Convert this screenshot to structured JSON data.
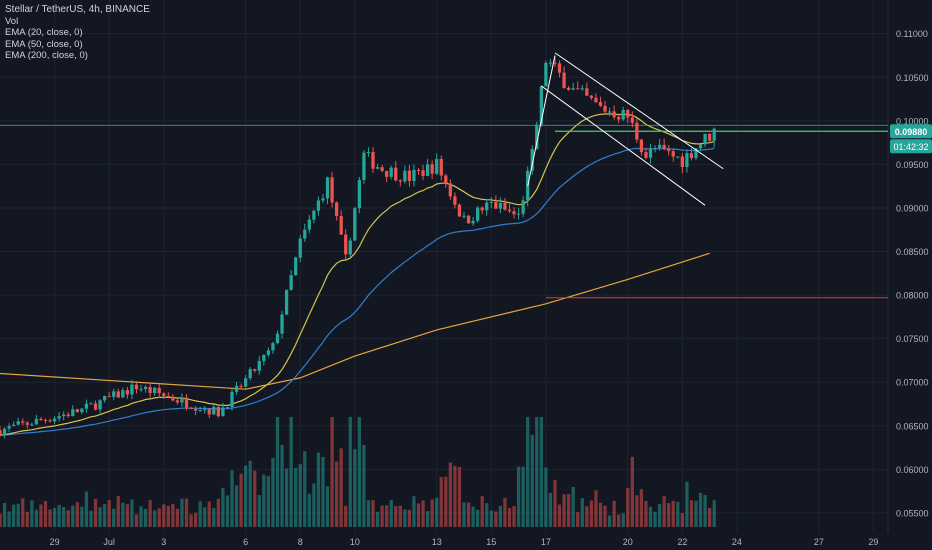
{
  "header": {
    "title": "Stellar / TetherUS, 4h, BINANCE",
    "indicators": [
      "Vol",
      "EMA (20, close, 0)",
      "EMA (50, close, 0)",
      "EMA (200, close, 0)"
    ]
  },
  "price_axis": {
    "ticks": [
      "0.11000",
      "0.10500",
      "0.10000",
      "0.09500",
      "0.09000",
      "0.08500",
      "0.08000",
      "0.07500",
      "0.07000",
      "0.06500",
      "0.06000",
      "0.05500"
    ],
    "current_price_label": "0.09880",
    "countdown_label": "01:42:32"
  },
  "time_axis": {
    "ticks": [
      "29",
      "Jul",
      "3",
      "6",
      "8",
      "10",
      "13",
      "15",
      "17",
      "20",
      "22",
      "24",
      "27",
      "29"
    ]
  },
  "colors": {
    "background": "#131722",
    "up": "#26a69a",
    "down": "#ef5350",
    "ema20": "#d4c44a",
    "ema50": "#2e7fd1",
    "ema200": "#e8a33d",
    "horizontal_line": "#4ba89a",
    "support_line": "#e53935",
    "trendlines": "#ffffff",
    "price_tag": "#26a69a"
  },
  "chart_data": {
    "type": "candlestick",
    "symbol": "Stellar / TetherUS",
    "interval": "4h",
    "exchange": "BINANCE",
    "y_range": [
      0.0535,
      0.1118
    ],
    "x_range": [
      "2020-06-27",
      "2020-07-31"
    ],
    "key_points": [
      {
        "date": "2020-06-27",
        "close": 0.0645
      },
      {
        "date": "2020-06-30",
        "close": 0.0668
      },
      {
        "date": "2020-07-02",
        "close": 0.0695
      },
      {
        "date": "2020-07-05",
        "close": 0.0665
      },
      {
        "date": "2020-07-07",
        "close": 0.074
      },
      {
        "date": "2020-07-08",
        "close": 0.086
      },
      {
        "date": "2020-07-09",
        "close": 0.093
      },
      {
        "date": "2020-07-09T16:00",
        "close": 0.084
      },
      {
        "date": "2020-07-10T08:00",
        "close": 0.096
      },
      {
        "date": "2020-07-11",
        "close": 0.0945
      },
      {
        "date": "2020-07-12",
        "close": 0.0935
      },
      {
        "date": "2020-07-13",
        "close": 0.095
      },
      {
        "date": "2020-07-14",
        "close": 0.0885
      },
      {
        "date": "2020-07-15",
        "close": 0.0905
      },
      {
        "date": "2020-07-16",
        "close": 0.089
      },
      {
        "date": "2020-07-16T12:00",
        "close": 0.096
      },
      {
        "date": "2020-07-17",
        "close": 0.107
      },
      {
        "date": "2020-07-18",
        "close": 0.1035
      },
      {
        "date": "2020-07-19",
        "close": 0.1015
      },
      {
        "date": "2020-07-20",
        "close": 0.1005
      },
      {
        "date": "2020-07-20T16:00",
        "close": 0.096
      },
      {
        "date": "2020-07-21",
        "close": 0.0968
      },
      {
        "date": "2020-07-22",
        "close": 0.0955
      },
      {
        "date": "2020-07-22T16:00",
        "close": 0.0975
      },
      {
        "date": "2020-07-23T04:00",
        "close": 0.0988
      }
    ],
    "ema200_points": [
      {
        "date": "2020-06-27",
        "value": 0.071
      },
      {
        "date": "2020-07-06",
        "value": 0.0692
      },
      {
        "date": "2020-07-08",
        "value": 0.0705
      },
      {
        "date": "2020-07-10",
        "value": 0.073
      },
      {
        "date": "2020-07-13",
        "value": 0.076
      },
      {
        "date": "2020-07-17",
        "value": 0.079
      },
      {
        "date": "2020-07-20",
        "value": 0.0818
      },
      {
        "date": "2020-07-23",
        "value": 0.0848
      }
    ],
    "horizontal_levels": [
      {
        "name": "resistance",
        "value": 0.0988
      },
      {
        "name": "support",
        "value": 0.0797
      }
    ],
    "trendlines": [
      {
        "name": "rally-line",
        "from": {
          "date": "2020-07-16T08:00",
          "value": 0.0925
        },
        "to": {
          "date": "2020-07-17T08:00",
          "value": 0.1075
        }
      },
      {
        "name": "channel-upper",
        "from": {
          "date": "2020-07-17T08:00",
          "value": 0.1078
        },
        "to": {
          "date": "2020-07-23T12:00",
          "value": 0.0945
        }
      },
      {
        "name": "channel-lower",
        "from": {
          "date": "2020-07-16T20:00",
          "value": 0.104
        },
        "to": {
          "date": "2020-07-22T20:00",
          "value": 0.0903
        }
      }
    ]
  }
}
